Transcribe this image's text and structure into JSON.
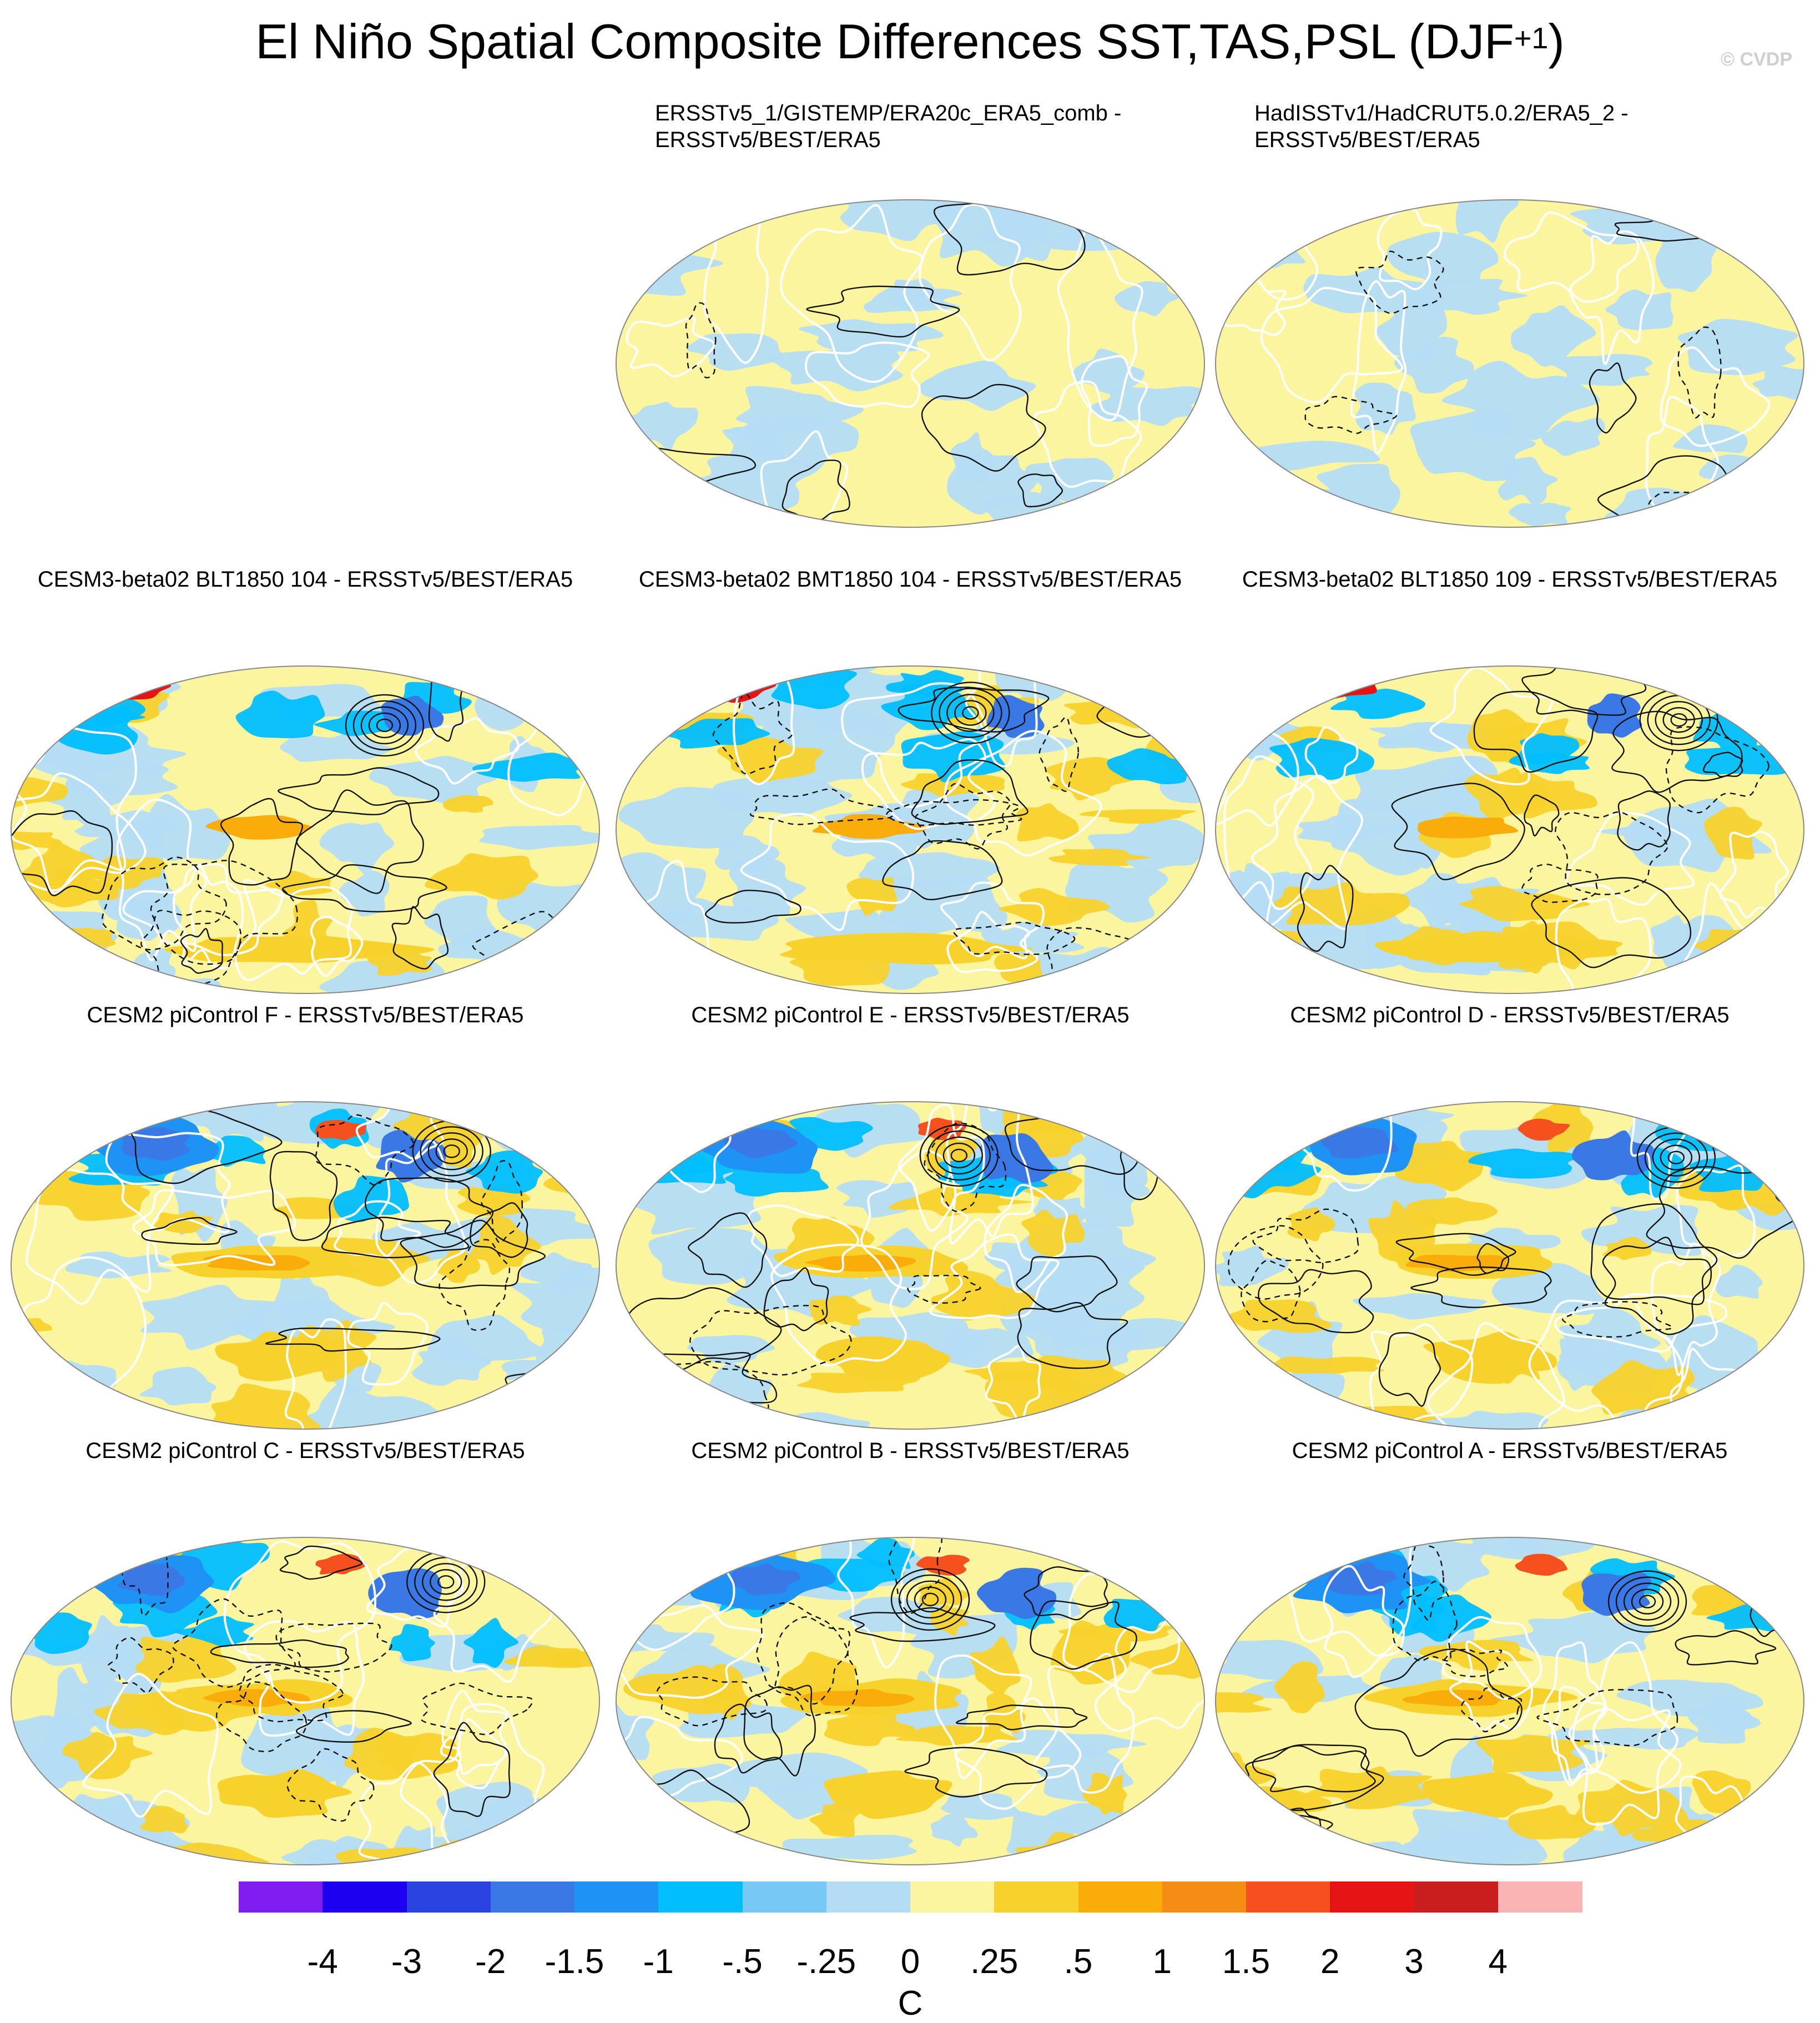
{
  "title_main": "El Niño Spatial Composite Differences SST,TAS,PSL (DJF",
  "title_sup": "+1",
  "title_end": ")",
  "copyright": "© CVDP",
  "panels": [
    {
      "title_line1": "ERSSTv5_1/GISTEMP/ERA20c_ERA5_comb -",
      "title_line2": "ERSSTv5/BEST/ERA5",
      "anomaly_level": 1,
      "seed": 11
    },
    {
      "title_line1": "HadISSTv1/HadCRUT5.0.2/ERA5_2 -",
      "title_line2": "ERSSTv5/BEST/ERA5",
      "anomaly_level": 1,
      "seed": 23
    },
    {
      "title_line1": "CESM3-beta02 BLT1850 104 - ERSSTv5/BEST/ERA5",
      "title_line2": "",
      "anomaly_level": 2,
      "seed": 37
    },
    {
      "title_line1": "CESM3-beta02 BMT1850 104 - ERSSTv5/BEST/ERA5",
      "title_line2": "",
      "anomaly_level": 2,
      "seed": 41
    },
    {
      "title_line1": "CESM3-beta02 BLT1850 109 - ERSSTv5/BEST/ERA5",
      "title_line2": "",
      "anomaly_level": 2,
      "seed": 53
    },
    {
      "title_line1": "CESM2 piControl F - ERSSTv5/BEST/ERA5",
      "title_line2": "",
      "anomaly_level": 3,
      "seed": 61
    },
    {
      "title_line1": "CESM2 piControl E - ERSSTv5/BEST/ERA5",
      "title_line2": "",
      "anomaly_level": 3,
      "seed": 73
    },
    {
      "title_line1": "CESM2 piControl D - ERSSTv5/BEST/ERA5",
      "title_line2": "",
      "anomaly_level": 3,
      "seed": 79
    },
    {
      "title_line1": "CESM2 piControl C - ERSSTv5/BEST/ERA5",
      "title_line2": "",
      "anomaly_level": 3,
      "seed": 89
    },
    {
      "title_line1": "CESM2 piControl B - ERSSTv5/BEST/ERA5",
      "title_line2": "",
      "anomaly_level": 3,
      "seed": 97
    },
    {
      "title_line1": "CESM2 piControl A - ERSSTv5/BEST/ERA5",
      "title_line2": "",
      "anomaly_level": 3,
      "seed": 103
    }
  ],
  "colorbar": {
    "colors": [
      "#7e1ef0",
      "#1e00f0",
      "#2b43e0",
      "#3a78e6",
      "#1f92f5",
      "#00beff",
      "#78c8f5",
      "#b4dcf5",
      "#fcf5a0",
      "#f8d22c",
      "#faac0a",
      "#f58c14",
      "#f5501e",
      "#e61414",
      "#c81e1e",
      "#fab4b4"
    ],
    "labels": [
      "-4",
      "-3",
      "-2",
      "-1.5",
      "-1",
      "-.5",
      "-.25",
      "0",
      ".25",
      ".5",
      "1",
      "1.5",
      "2",
      "3",
      "4"
    ],
    "units": "C"
  }
}
